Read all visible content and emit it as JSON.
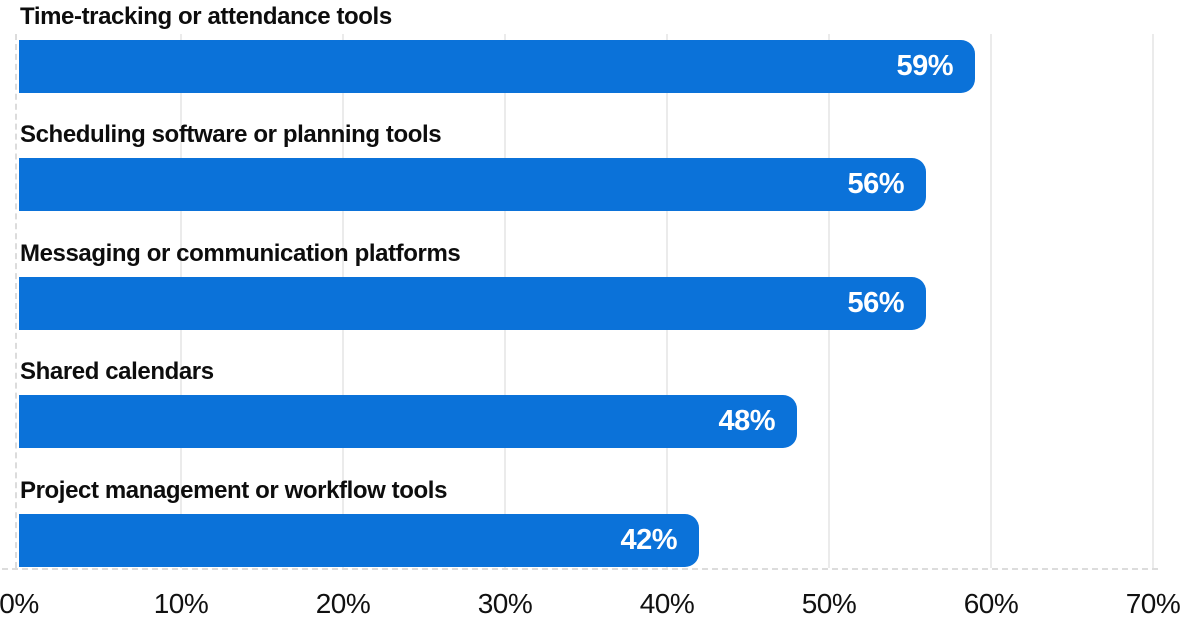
{
  "chart_data": {
    "type": "bar",
    "orientation": "horizontal",
    "title": "",
    "xlabel": "",
    "ylabel": "",
    "categories": [
      "Time-tracking or attendance tools",
      "Scheduling software or planning tools",
      "Messaging or communication platforms",
      "Shared calendars",
      "Project management or workflow tools"
    ],
    "values": [
      59,
      56,
      56,
      48,
      42
    ],
    "value_labels": [
      "59%",
      "56%",
      "56%",
      "48%",
      "42%"
    ],
    "x_ticks": [
      "0%",
      "10%",
      "20%",
      "30%",
      "40%",
      "50%",
      "60%",
      "70%"
    ],
    "x_tick_values": [
      0,
      10,
      20,
      30,
      40,
      50,
      60,
      70
    ],
    "xlim": [
      0,
      70
    ],
    "grid": "vertical-solid-light",
    "axis_style": "dashed-left-and-baseline",
    "legend": "none",
    "colors": {
      "bar": "#0B72D9",
      "bar_value_text": "#ffffff",
      "category_text": "#0d0d0d",
      "tick_text": "#111111",
      "gridline": "#ebebeb",
      "dashed_axis": "#dcdcdc",
      "background": "#ffffff"
    }
  }
}
